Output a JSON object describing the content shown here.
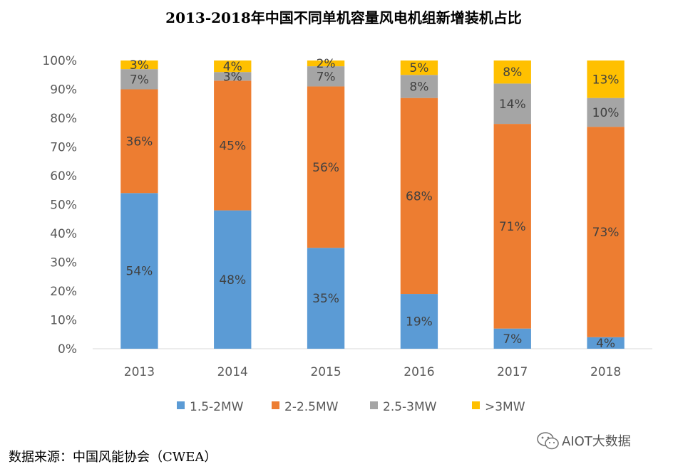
{
  "chart_data": {
    "type": "bar",
    "stacked": true,
    "title": "2013-2018年中国不同单机容量风电机组新增装机占比",
    "categories": [
      "2013",
      "2014",
      "2015",
      "2016",
      "2017",
      "2018"
    ],
    "series": [
      {
        "name": "1.5-2MW",
        "color": "#5B9BD5",
        "values": [
          54,
          48,
          35,
          19,
          7,
          4
        ]
      },
      {
        "name": "2-2.5MW",
        "color": "#ED7D31",
        "values": [
          36,
          45,
          56,
          68,
          71,
          73
        ]
      },
      {
        "name": "2.5-3MW",
        "color": "#A5A5A5",
        "values": [
          7,
          3,
          7,
          8,
          14,
          10
        ]
      },
      {
        "name": ">3MW",
        "color": "#FFC000",
        "values": [
          3,
          4,
          2,
          5,
          8,
          13
        ]
      }
    ],
    "value_suffix": "%",
    "ylim": [
      0,
      100
    ],
    "yticks": [
      0,
      10,
      20,
      30,
      40,
      50,
      60,
      70,
      80,
      90,
      100
    ],
    "xlabel": "",
    "ylabel": "",
    "grid": false,
    "legend": "bottom"
  },
  "source_note": "数据来源：中国风能协会（CWEA）",
  "watermark_text": "AIOT大数据"
}
